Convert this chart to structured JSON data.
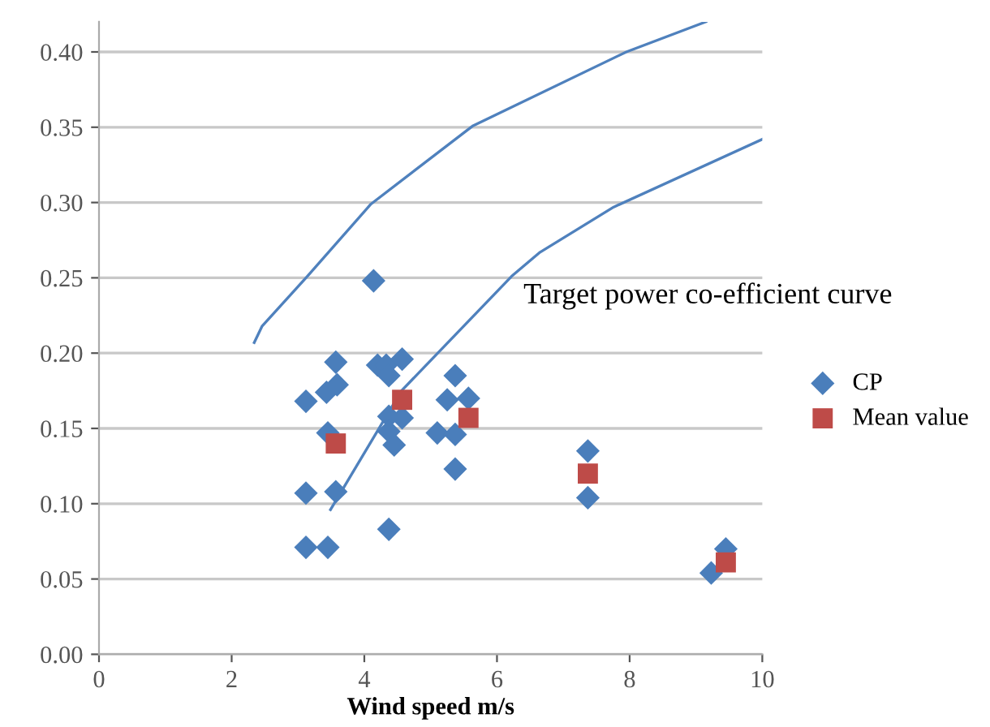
{
  "chart_data": {
    "type": "scatter",
    "xlabel": "Wind speed m/s",
    "annotations": [
      "Target power co-efficient curve"
    ],
    "xlim": [
      0,
      10
    ],
    "xticks": [
      0,
      2,
      4,
      6,
      8,
      10
    ],
    "ylim": [
      0,
      0.42
    ],
    "yticks": [
      {
        "value": 0,
        "label": "0.00"
      },
      {
        "value": 0.05,
        "label": "0.05"
      },
      {
        "value": 0.1,
        "label": "0.10"
      },
      {
        "value": 0.15,
        "label": "0.15"
      },
      {
        "value": 0.2,
        "label": "0.20"
      },
      {
        "value": 0.25,
        "label": "0.25"
      },
      {
        "value": 0.3,
        "label": "0.30"
      },
      {
        "value": 0.35,
        "label": "0.35"
      },
      {
        "value": 0.4,
        "label": "0.40"
      }
    ],
    "grid": "y",
    "legend": "right",
    "series": [
      {
        "name": "CP",
        "color": "#4a7ebb",
        "marker": "diamond",
        "x": [
          4.14,
          3.57,
          4.2,
          4.33,
          4.57,
          4.37,
          5.37,
          3.12,
          3.43,
          3.55,
          3.59,
          5.25,
          5.57,
          4.37,
          4.57,
          3.45,
          4.37,
          5.1,
          5.37,
          4.45,
          5.37,
          3.12,
          3.57,
          4.37,
          3.12,
          3.45,
          7.37,
          7.37,
          9.23,
          9.45
        ],
        "values": [
          0.248,
          0.194,
          0.192,
          0.192,
          0.196,
          0.185,
          0.185,
          0.168,
          0.174,
          null,
          0.179,
          0.169,
          0.17,
          0.158,
          0.157,
          0.147,
          0.148,
          0.147,
          0.146,
          0.139,
          0.123,
          0.107,
          0.108,
          0.083,
          0.071,
          0.071,
          0.135,
          0.104,
          0.054,
          0.07
        ]
      },
      {
        "name": "Mean value",
        "color": "#be4b48",
        "marker": "square",
        "x": [
          3.57,
          4.57,
          5.57,
          7.37,
          9.45
        ],
        "values": [
          0.14,
          0.169,
          0.157,
          0.12,
          0.061
        ]
      },
      {
        "type": "line",
        "color": "#4f81bd",
        "marker": "none",
        "x": [
          2.34,
          2.46,
          3.14,
          4.1,
          5.64,
          7.95,
          9.15
        ],
        "values": [
          0.207,
          0.218,
          0.251,
          0.299,
          0.351,
          0.4,
          0.42
        ]
      },
      {
        "type": "line",
        "color": "#4f81bd",
        "marker": "none",
        "x": [
          3.49,
          4.56,
          6.22,
          6.65,
          7.76,
          10
        ],
        "values": [
          0.096,
          0.175,
          0.251,
          0.267,
          0.297,
          0.342
        ]
      }
    ]
  }
}
